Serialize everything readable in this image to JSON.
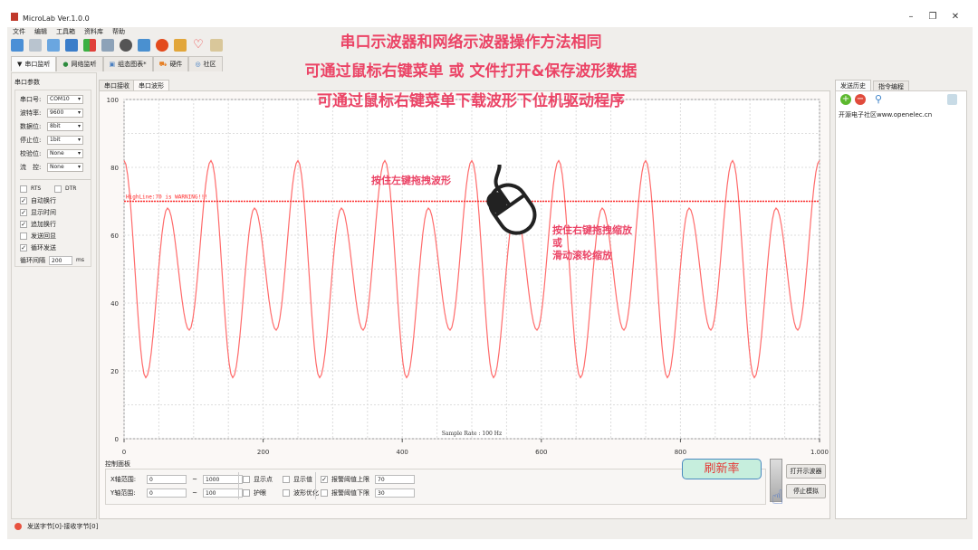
{
  "window": {
    "title": "MicroLab Ver.1.0.0",
    "controls": [
      "–",
      "❐",
      "✕"
    ]
  },
  "menu": [
    "文件",
    "编辑",
    "工具箱",
    "资料库",
    "帮助"
  ],
  "toolbar_icons": [
    "connect-icon",
    "disconnect-icon",
    "columns-icon",
    "window-icon",
    "sort-icon",
    "calculator-icon",
    "circuit-icon",
    "tool-icon",
    "flame-icon",
    "key-icon",
    "heart-icon",
    "book-icon"
  ],
  "main_tabs": [
    {
      "label": "串口监听",
      "icon": "funnel-icon"
    },
    {
      "label": "网络监听",
      "icon": "globe-icon"
    },
    {
      "label": "组态图表*",
      "icon": "chart-icon"
    },
    {
      "label": "硬件",
      "icon": "cart-icon"
    },
    {
      "label": "社区",
      "icon": "community-icon"
    }
  ],
  "left": {
    "group_title": "串口参数",
    "fields": [
      {
        "label": "串口号:",
        "value": "COM10"
      },
      {
        "label": "波特率:",
        "value": "9600"
      },
      {
        "label": "数据位:",
        "value": "8bit"
      },
      {
        "label": "停止位:",
        "value": "1bit"
      },
      {
        "label": "校验位:",
        "value": "None"
      },
      {
        "label": "流　控:",
        "value": "None"
      }
    ],
    "rts": "RTS",
    "dtr": "DTR",
    "checks": [
      {
        "label": "自动换行",
        "checked": true
      },
      {
        "label": "显示时间",
        "checked": true
      },
      {
        "label": "追加换行",
        "checked": true
      },
      {
        "label": "发送回显",
        "checked": false
      },
      {
        "label": "循环发送",
        "checked": true
      }
    ],
    "interval_label": "循环间隔",
    "interval_value": "200",
    "interval_unit": "ms"
  },
  "graph_tabs": [
    "串口接收",
    "串口波形"
  ],
  "chart_data": {
    "type": "line",
    "ylim": [
      0,
      100
    ],
    "xlim": [
      0,
      1000
    ],
    "grid": true,
    "yticks": [
      "100",
      "80",
      "60",
      "40",
      "20",
      "0"
    ],
    "xticks": [
      "0",
      "200",
      "400",
      "600",
      "800",
      "1.000"
    ],
    "annotation": "Sample Rate : 100 Hz",
    "warning_line": {
      "y": 70,
      "label": "HighLine:70 is WARNING!!!",
      "color": "#ff2a2a"
    },
    "series_color": "#ff6b6b",
    "extrema_pattern": {
      "period": 125,
      "points": [
        [
          0,
          82
        ],
        [
          31.25,
          18
        ],
        [
          62.5,
          68
        ],
        [
          93.75,
          32
        ]
      ]
    }
  },
  "control": {
    "title": "控制面板",
    "x_label": "X轴范围:",
    "x_min": "0",
    "x_max": "1000",
    "y_label": "Y轴范围:",
    "y_min": "0",
    "y_max": "100",
    "dash": "~",
    "opts": [
      {
        "label": "显示点",
        "checked": false
      },
      {
        "label": "显示值",
        "checked": false
      },
      {
        "label": "护眼",
        "checked": false
      },
      {
        "label": "波形优化",
        "checked": false
      }
    ],
    "upper_label": "报警阈值上限",
    "upper_checked": true,
    "upper_value": "70",
    "lower_label": "报警阈值下限",
    "lower_checked": false,
    "lower_value": "30",
    "open_btn": "打开示波器",
    "stop_btn": "停止模拟",
    "refresh_callout": "刷新率"
  },
  "right": {
    "tabs": [
      "发送历史",
      "指令编程"
    ],
    "items": [
      "开源电子社区www.openelec.cn"
    ]
  },
  "status": {
    "text": "发送字节[0]-接收字节[0]",
    "color": "#e8523f"
  },
  "overlay": {
    "lines": [
      "串口示波器和网络示波器操作方法相同",
      "可通过鼠标右键菜单 或 文件打开&保存波形数据",
      "可通过鼠标右键菜单下载波形下位机驱动程序"
    ],
    "drag_left": "按住左键拖拽波形",
    "drag_right": [
      "按住右键拖拽缩放",
      "或",
      "滑动滚轮缩放"
    ],
    "color": "#eb4466"
  }
}
